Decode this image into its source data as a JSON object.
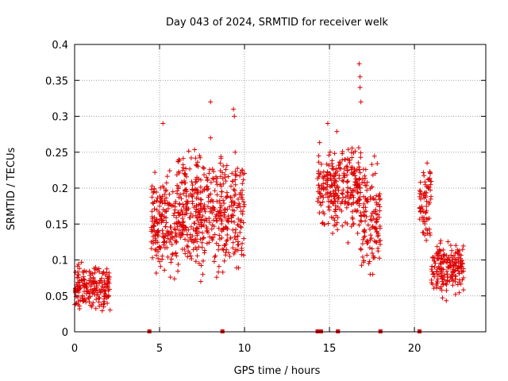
{
  "chart_data": {
    "type": "scatter",
    "title": "Day 043 of 2024, SRMTID for receiver welk",
    "xlabel": "GPS time / hours",
    "ylabel": "SRMTID / TECUs",
    "xlim": [
      0,
      24.2
    ],
    "ylim": [
      0,
      0.4
    ],
    "xticks": [
      0,
      5,
      10,
      15,
      20
    ],
    "yticks": [
      0,
      0.05,
      0.1,
      0.15,
      0.2,
      0.25,
      0.3,
      0.35,
      0.4
    ],
    "xtick_labels": [
      "0",
      "5",
      "10",
      "15",
      "20"
    ],
    "ytick_labels": [
      "0",
      "0.05",
      "0.1",
      "0.15",
      "0.2",
      "0.25",
      "0.3",
      "0.35",
      "0.4"
    ],
    "grid": true,
    "series_color": "#dd0000",
    "marker": "plus",
    "segments": [
      {
        "x_start": 0.0,
        "x_end": 2.1,
        "y_low": 0.02,
        "y_high": 0.13,
        "y_center": 0.06,
        "density": 9
      },
      {
        "x_start": 4.5,
        "x_end": 6.0,
        "y_low": 0.07,
        "y_high": 0.29,
        "y_center": 0.15,
        "density": 12
      },
      {
        "x_start": 6.0,
        "x_end": 10.0,
        "y_low": 0.07,
        "y_high": 0.32,
        "y_center": 0.17,
        "density": 12
      },
      {
        "x_start": 14.3,
        "x_end": 16.8,
        "y_low": 0.1,
        "y_high": 0.3,
        "y_center": 0.2,
        "density": 11
      },
      {
        "x_start": 16.8,
        "x_end": 18.0,
        "y_low": 0.08,
        "y_high": 0.37,
        "y_center": 0.16,
        "density": 11
      },
      {
        "x_start": 20.3,
        "x_end": 21.0,
        "y_low": 0.07,
        "y_high": 0.25,
        "y_center": 0.18,
        "density": 10
      },
      {
        "x_start": 21.0,
        "x_end": 22.9,
        "y_low": 0.04,
        "y_high": 0.16,
        "y_center": 0.09,
        "density": 10
      }
    ],
    "outliers": [
      {
        "x": 8.0,
        "y": 0.32
      },
      {
        "x": 9.35,
        "y": 0.31
      },
      {
        "x": 9.4,
        "y": 0.3
      },
      {
        "x": 5.2,
        "y": 0.29
      },
      {
        "x": 14.9,
        "y": 0.29
      },
      {
        "x": 16.75,
        "y": 0.373
      },
      {
        "x": 16.8,
        "y": 0.355
      },
      {
        "x": 16.8,
        "y": 0.34
      },
      {
        "x": 16.85,
        "y": 0.32
      },
      {
        "x": 8.0,
        "y": 0.27
      }
    ],
    "baseline_markers": [
      4.4,
      8.7,
      14.3,
      14.5,
      15.5,
      18.0,
      20.3
    ],
    "note": "Scatter points are approximated as clusters of plus markers sampled within each visible time segment."
  }
}
